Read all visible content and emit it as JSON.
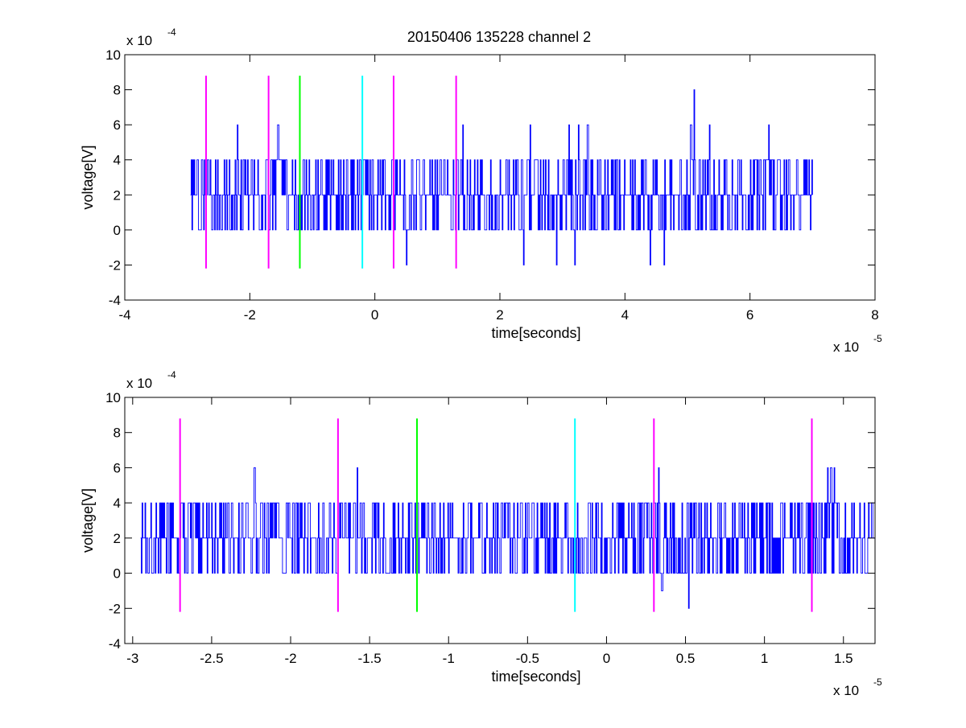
{
  "figure": {
    "title": "20150406 135228 channel 2"
  },
  "colors": {
    "signal": "#0000ff",
    "marker_magenta": "#ff00ff",
    "marker_green": "#00ff00",
    "marker_cyan": "#00ffff",
    "axes": "#000000"
  },
  "chart_data": [
    {
      "type": "line",
      "title": "20150406 135228 channel 2",
      "xlabel": "time[seconds]",
      "ylabel": "voltage[V]",
      "x_multiplier": "x 10",
      "x_exponent": "-5",
      "y_multiplier": "x 10",
      "y_exponent": "-4",
      "xlim": [
        -4,
        8
      ],
      "ylim": [
        -4,
        10
      ],
      "xticks": [
        -4,
        -2,
        0,
        2,
        4,
        6,
        8
      ],
      "yticks": [
        -4,
        -2,
        0,
        2,
        4,
        6,
        8,
        10
      ],
      "xtick_labels": [
        "-4",
        "-2",
        "0",
        "2",
        "4",
        "6",
        "8"
      ],
      "ytick_labels": [
        "-4",
        "-2",
        "0",
        "2",
        "4",
        "6",
        "8",
        "10"
      ],
      "grid": false,
      "series": [
        {
          "x_start": -2.95,
          "x_end": 7.0,
          "seed": 7,
          "levels": [
            0,
            2,
            4,
            6,
            8,
            -2
          ],
          "spikes": [
            {
              "x": -2.2,
              "y": 6
            },
            {
              "x": -1.55,
              "y": 6
            },
            {
              "x": 1.4,
              "y": 6
            },
            {
              "x": 2.48,
              "y": 6
            },
            {
              "x": 3.1,
              "y": 6
            },
            {
              "x": 3.25,
              "y": 6
            },
            {
              "x": 3.4,
              "y": 6
            },
            {
              "x": 5.1,
              "y": 8
            },
            {
              "x": 5.05,
              "y": 6
            },
            {
              "x": 5.35,
              "y": 6
            },
            {
              "x": 6.3,
              "y": 6
            },
            {
              "x": 0.5,
              "y": -2
            },
            {
              "x": 2.38,
              "y": -2
            },
            {
              "x": 2.9,
              "y": -2
            },
            {
              "x": 3.2,
              "y": -2
            },
            {
              "x": 4.4,
              "y": -2
            },
            {
              "x": 4.62,
              "y": -2
            }
          ]
        }
      ],
      "markers": [
        {
          "x": -2.7,
          "y_from": -2.2,
          "y_to": 8.8,
          "color": "magenta"
        },
        {
          "x": -1.7,
          "y_from": -2.2,
          "y_to": 8.8,
          "color": "magenta"
        },
        {
          "x": -1.2,
          "y_from": -2.2,
          "y_to": 8.8,
          "color": "green"
        },
        {
          "x": -0.2,
          "y_from": -2.2,
          "y_to": 8.8,
          "color": "cyan"
        },
        {
          "x": 0.3,
          "y_from": -2.2,
          "y_to": 8.8,
          "color": "magenta"
        },
        {
          "x": 1.3,
          "y_from": -2.2,
          "y_to": 8.8,
          "color": "magenta"
        }
      ]
    },
    {
      "type": "line",
      "title": "",
      "xlabel": "time[seconds]",
      "ylabel": "voltage[V]",
      "x_multiplier": "x 10",
      "x_exponent": "-5",
      "y_multiplier": "x 10",
      "y_exponent": "-4",
      "xlim": [
        -3.05,
        1.7
      ],
      "ylim": [
        -4,
        10
      ],
      "xticks": [
        -3,
        -2.5,
        -2,
        -1.5,
        -1,
        -0.5,
        0,
        0.5,
        1,
        1.5
      ],
      "yticks": [
        -4,
        -2,
        0,
        2,
        4,
        6,
        8,
        10
      ],
      "xtick_labels": [
        "-3",
        "-2.5",
        "-2",
        "-1.5",
        "-1",
        "-0.5",
        "0",
        "0.5",
        "1",
        "1.5"
      ],
      "ytick_labels": [
        "-4",
        "-2",
        "0",
        "2",
        "4",
        "6",
        "8",
        "10"
      ],
      "grid": false,
      "series": [
        {
          "x_start": -2.95,
          "x_end": 1.7,
          "seed": 13,
          "levels": [
            0,
            2,
            4
          ],
          "spikes": [
            {
              "x": -2.23,
              "y": 6
            },
            {
              "x": -1.58,
              "y": 6
            },
            {
              "x": 0.33,
              "y": 6
            },
            {
              "x": 1.4,
              "y": 6
            },
            {
              "x": 1.42,
              "y": 6
            },
            {
              "x": 1.44,
              "y": 6
            },
            {
              "x": 0.35,
              "y": -1
            },
            {
              "x": 0.52,
              "y": -2
            }
          ]
        }
      ],
      "markers": [
        {
          "x": -2.7,
          "y_from": -2.2,
          "y_to": 8.8,
          "color": "magenta"
        },
        {
          "x": -1.7,
          "y_from": -2.2,
          "y_to": 8.8,
          "color": "magenta"
        },
        {
          "x": -1.2,
          "y_from": -2.2,
          "y_to": 8.8,
          "color": "green"
        },
        {
          "x": -0.2,
          "y_from": -2.2,
          "y_to": 8.8,
          "color": "cyan"
        },
        {
          "x": 0.3,
          "y_from": -2.2,
          "y_to": 8.8,
          "color": "magenta"
        },
        {
          "x": 1.3,
          "y_from": -2.2,
          "y_to": 8.8,
          "color": "magenta"
        }
      ]
    }
  ]
}
